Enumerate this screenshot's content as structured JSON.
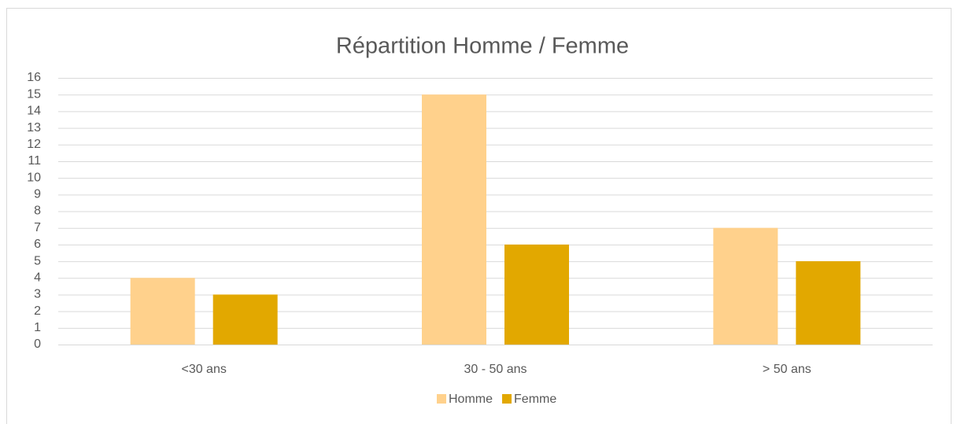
{
  "chart_data": {
    "type": "bar",
    "title": "Répartition Homme / Femme",
    "categories": [
      "<30 ans",
      "30 - 50 ans",
      "> 50 ans"
    ],
    "series": [
      {
        "name": "Homme",
        "color": "#ffd18c",
        "values": [
          4,
          15,
          7
        ]
      },
      {
        "name": "Femme",
        "color": "#e2a800",
        "values": [
          3,
          6,
          5
        ]
      }
    ],
    "ylim": [
      0,
      16
    ],
    "yticks": [
      0,
      1,
      2,
      3,
      4,
      5,
      6,
      7,
      8,
      9,
      10,
      11,
      12,
      13,
      14,
      15,
      16
    ],
    "grid": true,
    "legend": "bottom"
  }
}
